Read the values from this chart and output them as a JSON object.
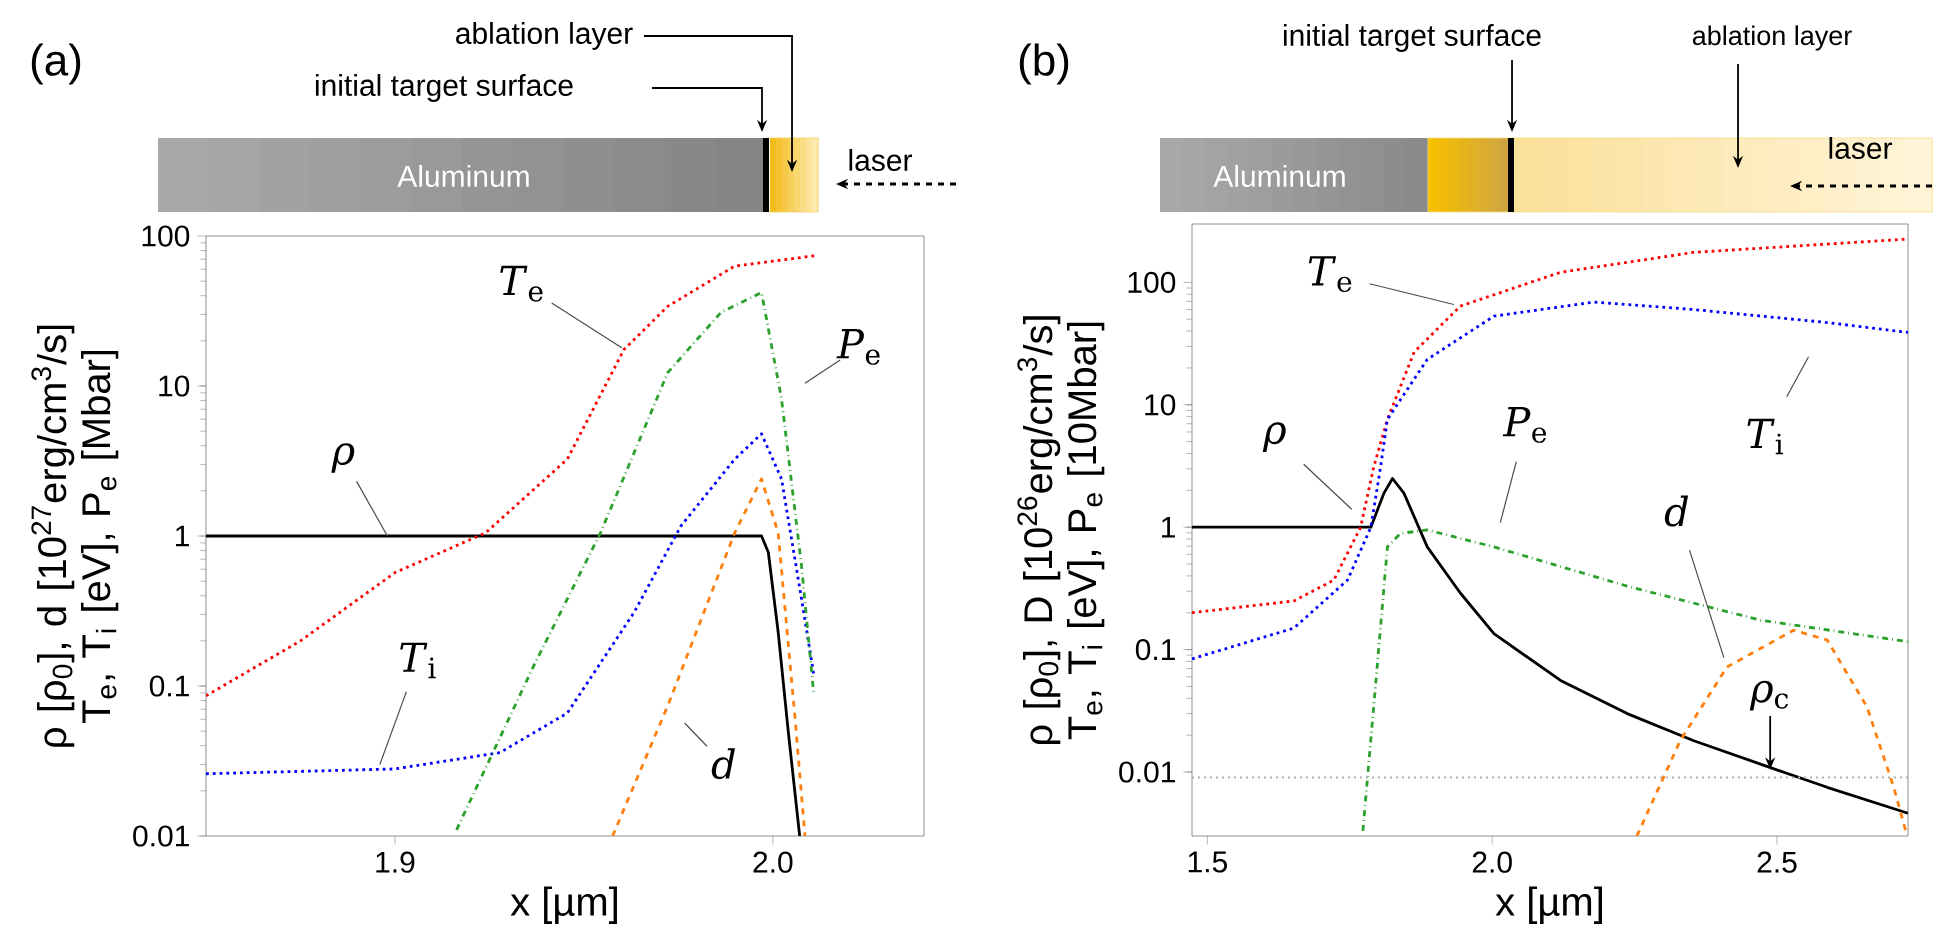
{
  "chart_data": [
    {
      "type": "line",
      "xlabel": "x [µm]",
      "ylabel": "ρ [ρ$_{0}$], d [10$^{27}$erg/cm$^{3}$/s] T$_{e}$, T$_{i}$ [eV], P$_{e}$ [Mbar]",
      "log": "y",
      "xlim": [
        1.85,
        2.04
      ],
      "ylim": [
        0.01,
        100
      ],
      "xticks": [
        1.9,
        {
          "value": 2.0,
          "label": "2.0"
        }
      ],
      "yticks": [
        0.01,
        0.1,
        1,
        10,
        100
      ],
      "series": [
        {
          "color": "#000000",
          "line_style": "solid",
          "x": [
            1.85,
            1.99,
            1.997,
            1.9988,
            2.0014,
            2.0041,
            2.0071
          ],
          "values": [
            1,
            1,
            1,
            0.78,
            0.23,
            0.049,
            0.01
          ]
        },
        {
          "color": "#ff0000",
          "line_style": "dotted",
          "x": [
            1.85,
            1.875,
            1.9,
            1.924,
            1.9456,
            1.9606,
            1.9722,
            1.9899,
            2.0112
          ],
          "values": [
            0.086,
            0.2,
            0.57,
            1.05,
            3.25,
            17.5,
            34,
            63,
            74
          ]
        },
        {
          "color": "#0000ff",
          "line_style": "dotted",
          "x": [
            1.85,
            1.9,
            1.9278,
            1.9456,
            1.9633,
            1.9757,
            1.9899,
            1.997,
            2.0023,
            2.0076,
            2.0108
          ],
          "values": [
            0.026,
            0.028,
            0.036,
            0.066,
            0.31,
            1.17,
            3.25,
            4.8,
            2.4,
            0.38,
            0.12
          ]
        },
        {
          "color": "#2ca02c",
          "line_style": "dashdot",
          "x": [
            1.9163,
            1.9367,
            1.9544,
            1.9722,
            1.9863,
            1.997,
            2.0023,
            2.0076,
            2.0108
          ],
          "values": [
            0.011,
            0.136,
            1.05,
            12.3,
            31,
            42,
            8.2,
            0.63,
            0.09
          ]
        },
        {
          "color": "#ff7f0e",
          "line_style": "dashed",
          "x": [
            1.9576,
            1.9722,
            1.9899,
            1.997,
            2.0014,
            2.0059,
            2.0085
          ],
          "values": [
            0.01,
            0.074,
            1.05,
            2.4,
            1.05,
            0.06,
            0.01
          ]
        }
      ],
      "annotations": [
        "(a)",
        "Aluminum",
        "laser",
        "initial target surface",
        "ablation layer",
        {
          "text": "*T*$_{e}$",
          "x": 1.96,
          "y": 18
        },
        {
          "text": "*P*$_{e}$",
          "x": 2.0023,
          "y": 8.2
        },
        {
          "text": "*ρ*",
          "x": 1.898,
          "y": 1
        },
        {
          "text": "*T*$_{i}$",
          "x": 1.896,
          "y": 0.03
        },
        {
          "text": "*d*",
          "x": 1.9722,
          "y": 0.074
        }
      ]
    },
    {
      "type": "line",
      "xlabel": "x [µm]",
      "ylabel": "ρ [ρ$_{0}$], D [10$^{26}$erg/cm$^{3}$/s] T$_{e}$, T$_{i}$ [eV], P$_{e}$ [10Mbar]",
      "log": "y",
      "xlim": [
        1.473,
        2.73
      ],
      "ylim": [
        0.003,
        300
      ],
      "xticks": [
        1.5,
        {
          "value": 2.0,
          "label": "2.0"
        },
        2.5
      ],
      "yticks": [
        0.01,
        0.1,
        1,
        10,
        100
      ],
      "series": [
        {
          "color": "#000000",
          "line_style": "solid",
          "x": [
            1.473,
            1.787,
            1.81,
            1.825,
            1.845,
            1.886,
            1.944,
            2.003,
            2.12,
            2.237,
            2.354,
            2.471,
            2.588,
            2.73
          ],
          "values": [
            1,
            1,
            1.9,
            2.5,
            1.9,
            0.69,
            0.29,
            0.135,
            0.056,
            0.03,
            0.018,
            0.0116,
            0.0075,
            0.0046
          ]
        },
        {
          "color": "#ff0000",
          "line_style": "dotted",
          "x": [
            1.473,
            1.652,
            1.722,
            1.769,
            1.792,
            1.816,
            1.863,
            1.944,
            2.12,
            2.354,
            2.73
          ],
          "values": [
            0.2,
            0.25,
            0.37,
            1.0,
            3.1,
            7.6,
            27,
            64,
            121,
            176,
            226
          ]
        },
        {
          "color": "#0000ff",
          "line_style": "dotted",
          "x": [
            1.473,
            1.652,
            1.746,
            1.787,
            1.804,
            1.816,
            1.886,
            2.003,
            2.178,
            2.354,
            2.588,
            2.73
          ],
          "values": [
            0.084,
            0.15,
            0.37,
            1.0,
            3.1,
            7.6,
            23.5,
            53,
            69,
            60,
            47,
            39
          ]
        },
        {
          "color": "#2ca02c",
          "line_style": "dashdot",
          "x": [
            1.773,
            1.798,
            1.816,
            1.839,
            1.886,
            2.003,
            2.237,
            2.471,
            2.73
          ],
          "values": [
            0.0033,
            0.072,
            0.69,
            0.89,
            0.95,
            0.69,
            0.33,
            0.174,
            0.116
          ]
        },
        {
          "color": "#ff7f0e",
          "line_style": "dashed",
          "x": [
            2.254,
            2.33,
            2.412,
            2.529,
            2.588,
            2.658,
            2.705,
            2.726
          ],
          "values": [
            0.003,
            0.018,
            0.072,
            0.144,
            0.12,
            0.034,
            0.0075,
            0.0033
          ]
        }
      ],
      "ref_lines": [
        {
          "axis": "y",
          "value": 0.009,
          "color": "#b0b0b0",
          "line_style": "dotted"
        }
      ],
      "annotations": [
        "(b)",
        "Aluminum",
        "laser",
        "initial target surface",
        "ablation layer",
        {
          "text": "*T*$_{e}$",
          "x": 1.944,
          "y": 64
        },
        {
          "text": "*T*$_{i}$",
          "x": 2.588,
          "y": 47
        },
        {
          "text": "*ρ*",
          "x": 1.787,
          "y": 1
        },
        {
          "text": "*P*$_{e}$",
          "x": 2.003,
          "y": 0.69
        },
        {
          "text": "*d*",
          "x": 2.412,
          "y": 0.072
        },
        {
          "text": "*ρ*$_{c}$",
          "x": 2.488,
          "y": 0.009
        }
      ]
    }
  ]
}
